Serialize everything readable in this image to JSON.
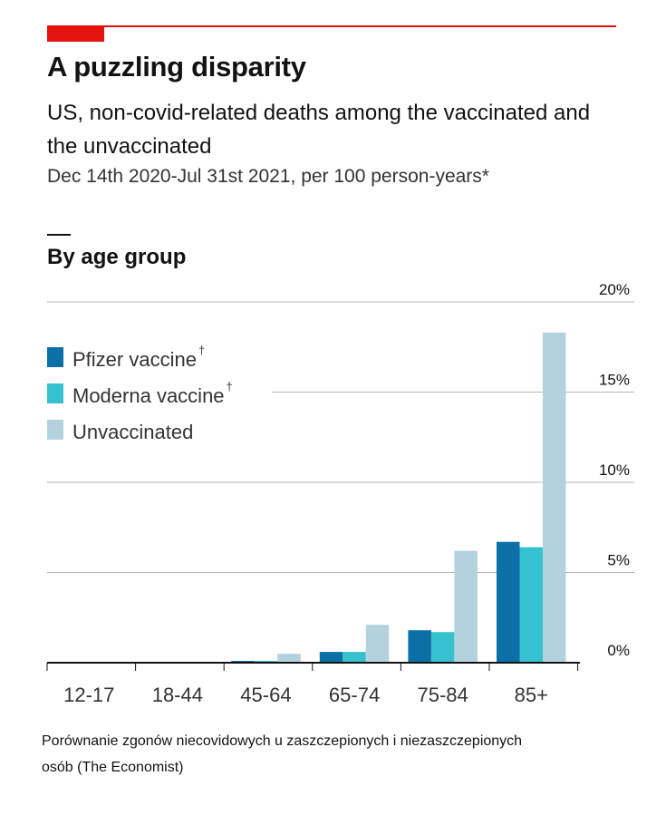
{
  "header": {
    "title": "A puzzling disparity",
    "subtitle": "US, non-covid-related deaths among the vaccinated and the unvaccinated",
    "note": "Dec 14th 2020-Jul 31st 2021, per 100 person-years*",
    "section": "By age group",
    "caption": "Porównanie zgonów niecovidowych u zaszczepionych i niezaszczepionych osób (The Economist)"
  },
  "colors": {
    "brand": "#e3120b",
    "pfizer": "#0c6fa5",
    "moderna": "#36c1d1",
    "unvaccinated": "#b4d2de",
    "grid": "#b5b5b5",
    "axis": "#121212"
  },
  "chart_data": {
    "type": "bar",
    "title": "By age group",
    "categories": [
      "12-17",
      "18-44",
      "45-64",
      "65-74",
      "75-84",
      "85+"
    ],
    "series": [
      {
        "name": "Pfizer vaccine",
        "marker": "†",
        "color": "#0c6fa5",
        "values": [
          0.0,
          0.0,
          0.1,
          0.6,
          1.8,
          6.7
        ]
      },
      {
        "name": "Moderna vaccine",
        "marker": "†",
        "color": "#36c1d1",
        "values": [
          0.0,
          0.0,
          0.1,
          0.6,
          1.7,
          6.4
        ]
      },
      {
        "name": "Unvaccinated",
        "marker": "",
        "color": "#b4d2de",
        "values": [
          0.0,
          0.05,
          0.5,
          2.1,
          6.2,
          18.3
        ]
      }
    ],
    "ylim": [
      0,
      20
    ],
    "yticks": [
      0,
      5,
      10,
      15,
      20
    ],
    "ytick_labels": [
      "0%",
      "5%",
      "10%",
      "15%",
      "20%"
    ],
    "ylabel": "",
    "xlabel": "",
    "grid": true,
    "legend_position": "top-left"
  }
}
